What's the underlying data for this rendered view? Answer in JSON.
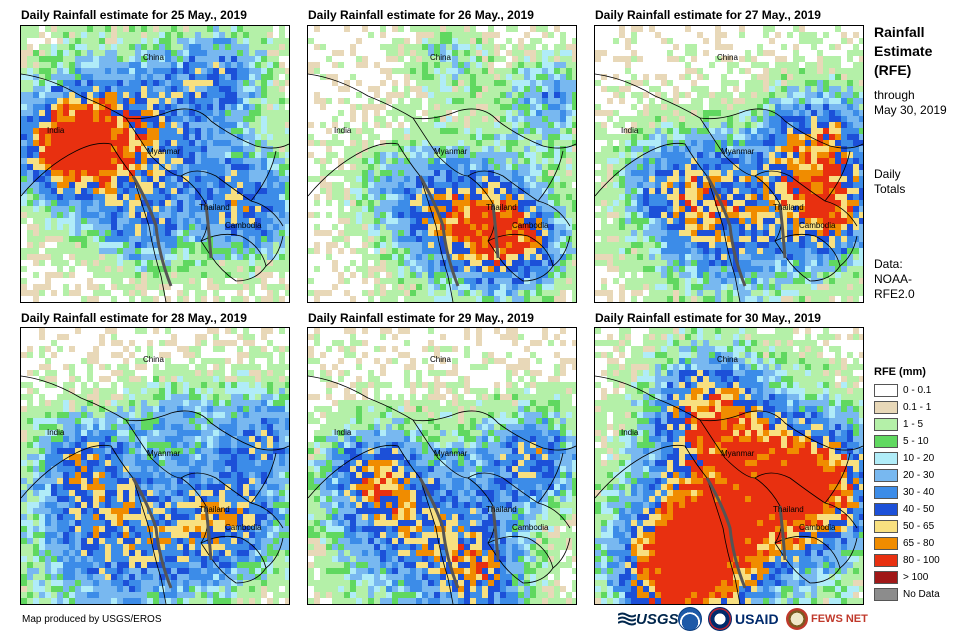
{
  "panels": [
    {
      "title": "Daily Rainfall estimate for 25 May., 2019"
    },
    {
      "title": "Daily Rainfall estimate for 26 May., 2019"
    },
    {
      "title": "Daily Rainfall estimate for 27 May., 2019"
    },
    {
      "title": "Daily Rainfall estimate for 28 May., 2019"
    },
    {
      "title": "Daily Rainfall estimate for 29 May., 2019"
    },
    {
      "title": "Daily Rainfall estimate for 30 May., 2019"
    }
  ],
  "map_labels": {
    "china": "China",
    "india": "India",
    "myanmar": "Myanmar",
    "thailand": "Thailand",
    "cambodia": "Cambodia"
  },
  "sidebar": {
    "heading": [
      "Rainfall",
      "Estimate",
      "(RFE)"
    ],
    "through": [
      "through",
      "May 30, 2019"
    ],
    "daily": [
      "Daily",
      "Totals"
    ],
    "data": [
      "Data:",
      "NOAA-",
      "RFE2.0"
    ]
  },
  "legend": {
    "title": "RFE (mm)",
    "items": [
      {
        "label": "0 - 0.1",
        "color": "#ffffff"
      },
      {
        "label": "0.1 - 1",
        "color": "#e8d8b8"
      },
      {
        "label": "1 - 5",
        "color": "#b4f0a8"
      },
      {
        "label": "5 - 10",
        "color": "#60d860"
      },
      {
        "label": "10 - 20",
        "color": "#b0ecf8"
      },
      {
        "label": "20 - 30",
        "color": "#78b8f0"
      },
      {
        "label": "30 - 40",
        "color": "#3c8ce8"
      },
      {
        "label": "40 - 50",
        "color": "#1c50d8"
      },
      {
        "label": "50 - 65",
        "color": "#f8e080"
      },
      {
        "label": "65 - 80",
        "color": "#f08c00"
      },
      {
        "label": "80 - 100",
        "color": "#e83010"
      },
      {
        "label": "> 100",
        "color": "#a01818"
      },
      {
        "label": "No Data",
        "color": "#8c8c8c"
      }
    ]
  },
  "footer": {
    "credit": "Map produced by USGS/EROS",
    "usgs": "USGS",
    "usaid": "USAID",
    "fews": "FEWS NET"
  }
}
